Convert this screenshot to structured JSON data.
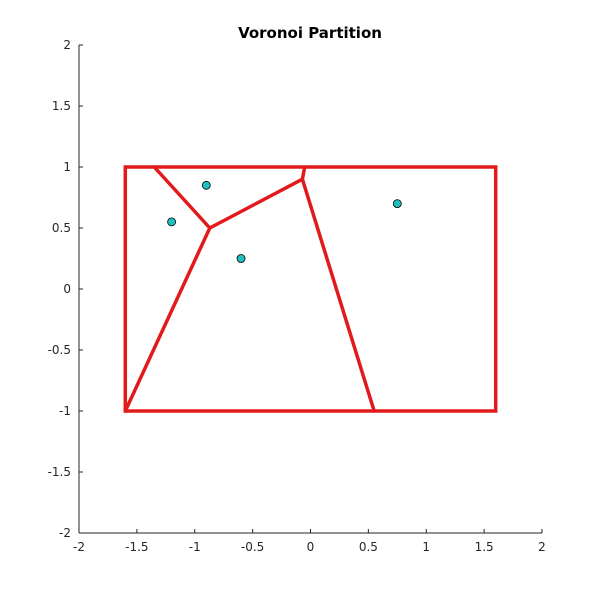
{
  "chart_data": {
    "type": "scatter",
    "title": "Voronoi Partition",
    "xlabel": "",
    "ylabel": "",
    "xlim": [
      -2,
      2
    ],
    "ylim": [
      -2,
      2
    ],
    "x_ticks": [
      -2,
      -1.5,
      -1,
      -0.5,
      0,
      0.5,
      1,
      1.5,
      2
    ],
    "y_ticks": [
      -2,
      -1.5,
      -1,
      -0.5,
      0,
      0.5,
      1,
      1.5,
      2
    ],
    "x_tick_labels": [
      "-2",
      "-1.5",
      "-1",
      "-0.5",
      "0",
      "0.5",
      "1",
      "1.5",
      "2"
    ],
    "y_tick_labels": [
      "-2",
      "-1.5",
      "-1",
      "-0.5",
      "0",
      "0.5",
      "1",
      "1.5",
      "2"
    ],
    "grid": false,
    "points": [
      {
        "x": -1.2,
        "y": 0.55
      },
      {
        "x": -0.9,
        "y": 0.85
      },
      {
        "x": -0.6,
        "y": 0.25
      },
      {
        "x": 0.75,
        "y": 0.7
      }
    ],
    "boundary_rectangle": {
      "x": [
        -1.6,
        1.6
      ],
      "y": [
        -1,
        1
      ]
    },
    "voronoi_edges": [
      [
        [
          -1.35,
          1.0
        ],
        [
          -0.87,
          0.5
        ]
      ],
      [
        [
          -0.87,
          0.5
        ],
        [
          -0.07,
          0.9
        ]
      ],
      [
        [
          -0.07,
          0.9
        ],
        [
          -0.05,
          1.0
        ]
      ],
      [
        [
          -0.87,
          0.5
        ],
        [
          -1.6,
          -1.0
        ]
      ],
      [
        [
          -0.07,
          0.9
        ],
        [
          0.55,
          -1.0
        ]
      ]
    ],
    "colors": {
      "edges": "#e31a1c",
      "points_fill": "#1fbfbf",
      "points_stroke": "#000000",
      "axes": "#262626"
    }
  }
}
